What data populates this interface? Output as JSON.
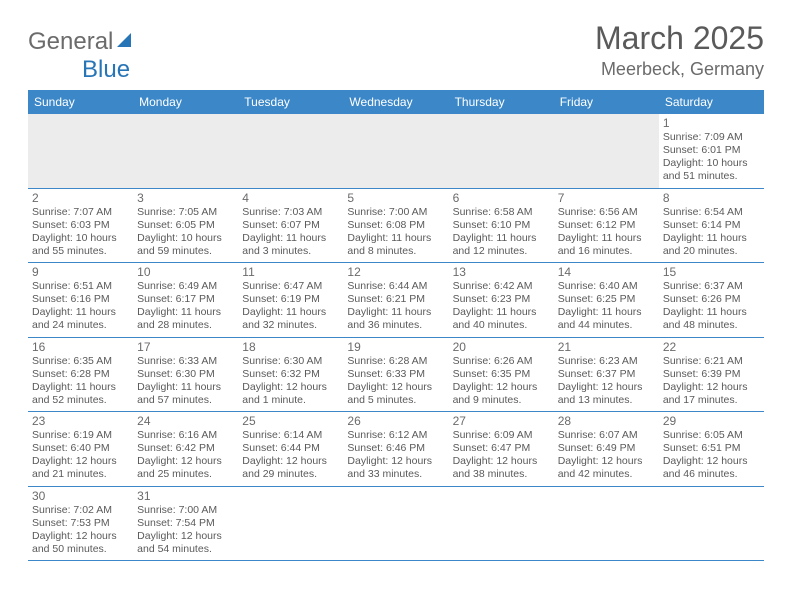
{
  "logo": {
    "text1": "General",
    "text2": "Blue"
  },
  "title": "March 2025",
  "location": "Meerbeck, Germany",
  "dayNames": [
    "Sunday",
    "Monday",
    "Tuesday",
    "Wednesday",
    "Thursday",
    "Friday",
    "Saturday"
  ],
  "colors": {
    "headerBg": "#3b87c8",
    "borderColor": "#3b87c8",
    "firstWeekBg": "#ececec",
    "logoBlue": "#2775b6",
    "textGray": "#6b6b6b"
  },
  "weeks": [
    [
      null,
      null,
      null,
      null,
      null,
      null,
      {
        "n": "1",
        "sr": "Sunrise: 7:09 AM",
        "ss": "Sunset: 6:01 PM",
        "dl": "Daylight: 10 hours and 51 minutes."
      }
    ],
    [
      {
        "n": "2",
        "sr": "Sunrise: 7:07 AM",
        "ss": "Sunset: 6:03 PM",
        "dl": "Daylight: 10 hours and 55 minutes."
      },
      {
        "n": "3",
        "sr": "Sunrise: 7:05 AM",
        "ss": "Sunset: 6:05 PM",
        "dl": "Daylight: 10 hours and 59 minutes."
      },
      {
        "n": "4",
        "sr": "Sunrise: 7:03 AM",
        "ss": "Sunset: 6:07 PM",
        "dl": "Daylight: 11 hours and 3 minutes."
      },
      {
        "n": "5",
        "sr": "Sunrise: 7:00 AM",
        "ss": "Sunset: 6:08 PM",
        "dl": "Daylight: 11 hours and 8 minutes."
      },
      {
        "n": "6",
        "sr": "Sunrise: 6:58 AM",
        "ss": "Sunset: 6:10 PM",
        "dl": "Daylight: 11 hours and 12 minutes."
      },
      {
        "n": "7",
        "sr": "Sunrise: 6:56 AM",
        "ss": "Sunset: 6:12 PM",
        "dl": "Daylight: 11 hours and 16 minutes."
      },
      {
        "n": "8",
        "sr": "Sunrise: 6:54 AM",
        "ss": "Sunset: 6:14 PM",
        "dl": "Daylight: 11 hours and 20 minutes."
      }
    ],
    [
      {
        "n": "9",
        "sr": "Sunrise: 6:51 AM",
        "ss": "Sunset: 6:16 PM",
        "dl": "Daylight: 11 hours and 24 minutes."
      },
      {
        "n": "10",
        "sr": "Sunrise: 6:49 AM",
        "ss": "Sunset: 6:17 PM",
        "dl": "Daylight: 11 hours and 28 minutes."
      },
      {
        "n": "11",
        "sr": "Sunrise: 6:47 AM",
        "ss": "Sunset: 6:19 PM",
        "dl": "Daylight: 11 hours and 32 minutes."
      },
      {
        "n": "12",
        "sr": "Sunrise: 6:44 AM",
        "ss": "Sunset: 6:21 PM",
        "dl": "Daylight: 11 hours and 36 minutes."
      },
      {
        "n": "13",
        "sr": "Sunrise: 6:42 AM",
        "ss": "Sunset: 6:23 PM",
        "dl": "Daylight: 11 hours and 40 minutes."
      },
      {
        "n": "14",
        "sr": "Sunrise: 6:40 AM",
        "ss": "Sunset: 6:25 PM",
        "dl": "Daylight: 11 hours and 44 minutes."
      },
      {
        "n": "15",
        "sr": "Sunrise: 6:37 AM",
        "ss": "Sunset: 6:26 PM",
        "dl": "Daylight: 11 hours and 48 minutes."
      }
    ],
    [
      {
        "n": "16",
        "sr": "Sunrise: 6:35 AM",
        "ss": "Sunset: 6:28 PM",
        "dl": "Daylight: 11 hours and 52 minutes."
      },
      {
        "n": "17",
        "sr": "Sunrise: 6:33 AM",
        "ss": "Sunset: 6:30 PM",
        "dl": "Daylight: 11 hours and 57 minutes."
      },
      {
        "n": "18",
        "sr": "Sunrise: 6:30 AM",
        "ss": "Sunset: 6:32 PM",
        "dl": "Daylight: 12 hours and 1 minute."
      },
      {
        "n": "19",
        "sr": "Sunrise: 6:28 AM",
        "ss": "Sunset: 6:33 PM",
        "dl": "Daylight: 12 hours and 5 minutes."
      },
      {
        "n": "20",
        "sr": "Sunrise: 6:26 AM",
        "ss": "Sunset: 6:35 PM",
        "dl": "Daylight: 12 hours and 9 minutes."
      },
      {
        "n": "21",
        "sr": "Sunrise: 6:23 AM",
        "ss": "Sunset: 6:37 PM",
        "dl": "Daylight: 12 hours and 13 minutes."
      },
      {
        "n": "22",
        "sr": "Sunrise: 6:21 AM",
        "ss": "Sunset: 6:39 PM",
        "dl": "Daylight: 12 hours and 17 minutes."
      }
    ],
    [
      {
        "n": "23",
        "sr": "Sunrise: 6:19 AM",
        "ss": "Sunset: 6:40 PM",
        "dl": "Daylight: 12 hours and 21 minutes."
      },
      {
        "n": "24",
        "sr": "Sunrise: 6:16 AM",
        "ss": "Sunset: 6:42 PM",
        "dl": "Daylight: 12 hours and 25 minutes."
      },
      {
        "n": "25",
        "sr": "Sunrise: 6:14 AM",
        "ss": "Sunset: 6:44 PM",
        "dl": "Daylight: 12 hours and 29 minutes."
      },
      {
        "n": "26",
        "sr": "Sunrise: 6:12 AM",
        "ss": "Sunset: 6:46 PM",
        "dl": "Daylight: 12 hours and 33 minutes."
      },
      {
        "n": "27",
        "sr": "Sunrise: 6:09 AM",
        "ss": "Sunset: 6:47 PM",
        "dl": "Daylight: 12 hours and 38 minutes."
      },
      {
        "n": "28",
        "sr": "Sunrise: 6:07 AM",
        "ss": "Sunset: 6:49 PM",
        "dl": "Daylight: 12 hours and 42 minutes."
      },
      {
        "n": "29",
        "sr": "Sunrise: 6:05 AM",
        "ss": "Sunset: 6:51 PM",
        "dl": "Daylight: 12 hours and 46 minutes."
      }
    ],
    [
      {
        "n": "30",
        "sr": "Sunrise: 7:02 AM",
        "ss": "Sunset: 7:53 PM",
        "dl": "Daylight: 12 hours and 50 minutes."
      },
      {
        "n": "31",
        "sr": "Sunrise: 7:00 AM",
        "ss": "Sunset: 7:54 PM",
        "dl": "Daylight: 12 hours and 54 minutes."
      },
      null,
      null,
      null,
      null,
      null
    ]
  ]
}
